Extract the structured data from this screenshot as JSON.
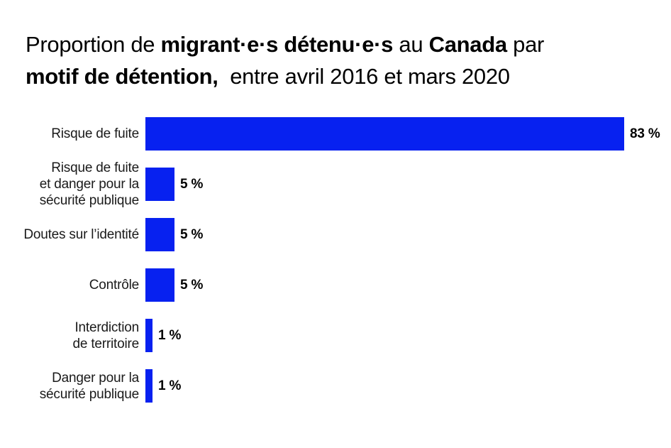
{
  "page": {
    "background_color": "#ffffff"
  },
  "title": {
    "lines": [
      {
        "segments": [
          {
            "text": "Proportion de ",
            "bold": false
          },
          {
            "text": "migrant·e·s détenu·e·s",
            "bold": true
          },
          {
            "text": " au ",
            "bold": false
          },
          {
            "text": "Canada",
            "bold": true
          },
          {
            "text": " par",
            "bold": false
          }
        ]
      },
      {
        "segments": [
          {
            "text": "motif de détention,",
            "bold": true
          },
          {
            "text": "  entre avril 2016 et mars 2020",
            "bold": false
          }
        ]
      }
    ]
  },
  "chart_data": {
    "type": "bar",
    "orientation": "horizontal",
    "title": "Proportion de migrant·e·s détenu·e·s au Canada par motif de détention, entre avril 2016 et mars 2020",
    "categories": [
      "Risque de fuite",
      "Risque de fuite et danger pour la sécurité publique",
      "Doutes sur l’identité",
      "Contrôle",
      "Interdiction de territoire",
      "Danger pour la sécurité publique"
    ],
    "category_lines": [
      [
        "Risque de fuite"
      ],
      [
        "Risque de fuite",
        "et danger pour la",
        "sécurité publique"
      ],
      [
        "Doutes sur l’identité"
      ],
      [
        "Contrôle"
      ],
      [
        "Interdiction",
        "de territoire"
      ],
      [
        "Danger pour la",
        "sécurité publique"
      ]
    ],
    "values": [
      83,
      5,
      5,
      5,
      1,
      1
    ],
    "value_labels": [
      "83 %",
      "5 %",
      "5 %",
      "5 %",
      "1 %",
      "1 %"
    ],
    "xlim": [
      0,
      100
    ],
    "grid": false,
    "legend": false,
    "bar_color": "#0721f0",
    "label_color": "#1a1a1a",
    "value_color": "#000000"
  }
}
